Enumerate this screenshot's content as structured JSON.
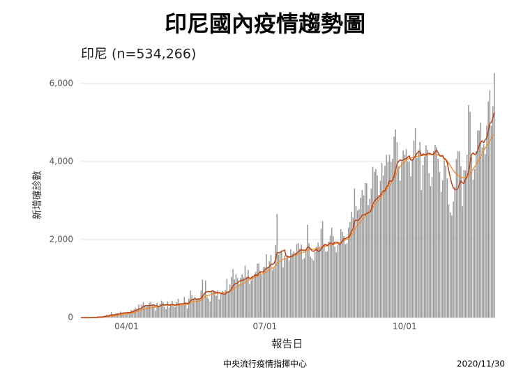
{
  "chart_data": {
    "type": "bar",
    "title": "印尼國內疫情趨勢圖",
    "subtitle": "印尼 (n=534,266)",
    "y_label": "新增確診數",
    "x_label": "報告日",
    "source": "中央流行疫情指揮中心",
    "date": "2020/11/30",
    "ylim": [
      0,
      6300
    ],
    "yticks": [
      0,
      {
        "value": 2000,
        "label": "2,000"
      },
      {
        "value": 4000,
        "label": "4,000"
      },
      {
        "value": 6000,
        "label": "6,000"
      }
    ],
    "grid": true,
    "categories": [
      null,
      null,
      null,
      null,
      null,
      null,
      null,
      null,
      null,
      null,
      null,
      null,
      null,
      null,
      null,
      null,
      null,
      null,
      null,
      null,
      null,
      null,
      null,
      null,
      null,
      null,
      null,
      null,
      null,
      null,
      "04/01",
      null,
      null,
      null,
      null,
      null,
      null,
      null,
      null,
      null,
      null,
      null,
      null,
      null,
      null,
      null,
      null,
      null,
      null,
      null,
      null,
      null,
      null,
      null,
      null,
      null,
      null,
      null,
      null,
      null,
      null,
      null,
      null,
      null,
      null,
      null,
      null,
      null,
      null,
      null,
      null,
      null,
      null,
      null,
      null,
      null,
      null,
      null,
      null,
      null,
      null,
      null,
      null,
      null,
      null,
      null,
      null,
      null,
      null,
      null,
      null,
      null,
      null,
      null,
      null,
      null,
      null,
      null,
      null,
      null,
      null,
      null,
      null,
      null,
      null,
      null,
      null,
      null,
      null,
      null,
      null,
      null,
      null,
      null,
      null,
      null,
      null,
      null,
      null,
      null,
      null,
      "07/01",
      null,
      null,
      null,
      null,
      null,
      null,
      null,
      null,
      null,
      null,
      null,
      null,
      null,
      null,
      null,
      null,
      null,
      null,
      null,
      null,
      null,
      null,
      null,
      null,
      null,
      null,
      null,
      null,
      null,
      null,
      null,
      null,
      null,
      null,
      null,
      null,
      null,
      null,
      null,
      null,
      null,
      null,
      null,
      null,
      null,
      null,
      null,
      null,
      null,
      null,
      null,
      null,
      null,
      null,
      null,
      null,
      null,
      null,
      null,
      null,
      null,
      null,
      null,
      null,
      null,
      null,
      null,
      null,
      null,
      null,
      null,
      null,
      null,
      null,
      null,
      null,
      null,
      null,
      null,
      null,
      null,
      null,
      null,
      null,
      null,
      null,
      null,
      null,
      null,
      null,
      null,
      "10/01",
      null,
      null,
      null,
      null,
      null,
      null,
      null,
      null,
      null,
      null,
      null,
      null,
      null,
      null,
      null,
      null,
      null,
      null,
      null,
      null,
      null,
      null,
      null,
      null,
      null,
      null,
      null,
      null,
      null,
      null,
      null,
      null,
      null,
      null,
      null,
      null,
      null,
      null,
      null,
      null,
      null,
      null,
      null,
      null,
      null,
      null,
      null,
      null,
      null,
      null,
      null,
      null,
      null,
      null,
      null,
      null,
      null,
      null,
      null
    ],
    "series": [
      {
        "type": "bar",
        "color": "#9a9a9a",
        "values": [
          2,
          0,
          0,
          0,
          2,
          0,
          2,
          13,
          8,
          7,
          0,
          35,
          27,
          21,
          17,
          38,
          55,
          82,
          60,
          81,
          141,
          64,
          65,
          106,
          105,
          103,
          153,
          109,
          130,
          129,
          114,
          149,
          113,
          196,
          181,
          218,
          247,
          218,
          337,
          219,
          330,
          399,
          316,
          282,
          297,
          380,
          407,
          325,
          327,
          185,
          375,
          283,
          357,
          436,
          396,
          275,
          214,
          415,
          260,
          347,
          433,
          292,
          271,
          395,
          484,
          367,
          338,
          336,
          533,
          387,
          233,
          484,
          689,
          568,
          490,
          529,
          489,
          496,
          486,
          693,
          973,
          634,
          949,
          526,
          479,
          415,
          686,
          687,
          678,
          557,
          700,
          467,
          609,
          684,
          585,
          703,
          993,
          672,
          847,
          1043,
          1241,
          979,
          1111,
          1014,
          857,
          1017,
          1106,
          1031,
          1331,
          1041,
          1226,
          862,
          954,
          1051,
          1113,
          1178,
          1385,
          1385,
          1198,
          1082,
          1293,
          1293,
          1624,
          1301,
          1447,
          1607,
          1209,
          1268,
          1853,
          2657,
          1611,
          1671,
          1681,
          1282,
          1591,
          1522,
          1574,
          1462,
          1752,
          1639,
          1693,
          1655,
          1882,
          1906,
          1761,
          1868,
          1492,
          1525,
          1748,
          2381,
          1904,
          1560,
          1519,
          1462,
          1679,
          1815,
          1922,
          1815,
          2277,
          2473,
          1893,
          1687,
          1693,
          1942,
          2098,
          2307,
          2081,
          1821,
          1673,
          1866,
          1902,
          2266,
          2197,
          2090,
          1877,
          1903,
          2306,
          2447,
          2719,
          2564,
          3308,
          2858,
          2743,
          2775,
          3075,
          3269,
          3128,
          3444,
          3444,
          2880,
          3046,
          3307,
          3861,
          3737,
          3806,
          3636,
          3141,
          3507,
          3963,
          3635,
          3891,
          4168,
          3989,
          4176,
          3989,
          4071,
          4634,
          4823,
          4494,
          3874,
          3509,
          4002,
          4284,
          4174,
          4317,
          4007,
          3992,
          3622,
          4056,
          4538,
          4850,
          4094,
          4294,
          4497,
          3267,
          3906,
          4127,
          4411,
          4301,
          3703,
          3373,
          3602,
          4267,
          4432,
          4369,
          4070,
          3732,
          3222,
          3520,
          4029,
          3893,
          3565,
          2897,
          2696,
          2618,
          2973,
          3356,
          4065,
          4262,
          4262,
          3880,
          2853,
          3779,
          3770,
          4173,
          5444,
          5272,
          4106,
          3535,
          3807,
          4265,
          4798,
          4792,
          4998,
          4360,
          4442,
          4192,
          4917,
          5534,
          5828,
          4918,
          5418,
          6267
        ]
      },
      {
        "type": "line",
        "color": "#f0913a",
        "values": [
          1,
          1,
          1,
          1,
          1,
          1,
          1,
          2,
          2,
          3,
          3,
          5,
          7,
          8,
          10,
          12,
          16,
          21,
          24,
          28,
          37,
          41,
          44,
          49,
          55,
          60,
          70,
          77,
          85,
          90,
          98,
          104,
          109,
          116,
          122,
          130,
          140,
          150,
          166,
          175,
          188,
          210,
          218,
          232,
          236,
          242,
          249,
          258,
          266,
          264,
          277,
          280,
          290,
          308,
          314,
          317,
          318,
          320,
          318,
          315,
          322,
          318,
          312,
          320,
          318,
          320,
          322,
          325,
          330,
          335,
          340,
          348,
          380,
          400,
          410,
          420,
          415,
          420,
          425,
          440,
          480,
          510,
          550,
          560,
          575,
          580,
          590,
          600,
          610,
          620,
          630,
          630,
          630,
          635,
          640,
          640,
          650,
          660,
          670,
          690,
          720,
          750,
          770,
          790,
          820,
          840,
          860,
          880,
          900,
          920,
          950,
          970,
          990,
          1010,
          1030,
          1050,
          1060,
          1080,
          1100,
          1110,
          1130,
          1150,
          1170,
          1190,
          1220,
          1250,
          1270,
          1290,
          1320,
          1380,
          1420,
          1440,
          1470,
          1490,
          1510,
          1520,
          1540,
          1550,
          1560,
          1570,
          1590,
          1600,
          1610,
          1620,
          1640,
          1660,
          1670,
          1680,
          1690,
          1720,
          1740,
          1750,
          1750,
          1750,
          1760,
          1770,
          1770,
          1780,
          1790,
          1810,
          1820,
          1830,
          1840,
          1850,
          1860,
          1870,
          1880,
          1890,
          1900,
          1910,
          1920,
          1930,
          1950,
          1970,
          1990,
          2010,
          2030,
          2060,
          2110,
          2160,
          2240,
          2300,
          2350,
          2400,
          2450,
          2500,
          2550,
          2590,
          2640,
          2680,
          2720,
          2770,
          2820,
          2870,
          2920,
          2970,
          3020,
          3070,
          3120,
          3170,
          3220,
          3280,
          3340,
          3400,
          3450,
          3500,
          3570,
          3640,
          3720,
          3800,
          3870,
          3920,
          3960,
          4000,
          4030,
          4060,
          4080,
          4090,
          4100,
          4110,
          4120,
          4130,
          4140,
          4150,
          4150,
          4160,
          4160,
          4170,
          4170,
          4180,
          4180,
          4180,
          4180,
          4180,
          4180,
          4170,
          4160,
          4150,
          4120,
          4090,
          4060,
          4010,
          3950,
          3890,
          3830,
          3770,
          3720,
          3680,
          3650,
          3620,
          3600,
          3590,
          3580,
          3580,
          3580,
          3620,
          3680,
          3740,
          3800,
          3860,
          3920,
          3990,
          4060,
          4130,
          4200,
          4270,
          4340,
          4400,
          4460,
          4520,
          4580,
          4640,
          4700
        ]
      },
      {
        "type": "line",
        "color": "#b5421a",
        "values": [
          1,
          1,
          1,
          1,
          1,
          1,
          1,
          3,
          4,
          5,
          5,
          10,
          13,
          16,
          18,
          22,
          28,
          40,
          45,
          50,
          67,
          69,
          70,
          78,
          89,
          93,
          105,
          112,
          121,
          120,
          126,
          131,
          124,
          137,
          148,
          164,
          181,
          194,
          221,
          225,
          247,
          283,
          294,
          311,
          305,
          308,
          312,
          321,
          326,
          298,
          309,
          283,
          294,
          319,
          331,
          322,
          327,
          339,
          322,
          327,
          339,
          330,
          315,
          337,
          331,
          349,
          355,
          355,
          363,
          372,
          363,
          373,
          425,
          461,
          462,
          488,
          463,
          478,
          478,
          493,
          559,
          589,
          654,
          662,
          668,
          661,
          678,
          686,
          646,
          653,
          641,
          639,
          618,
          617,
          601,
          604,
          652,
          648,
          677,
          730,
          807,
          853,
          871,
          878,
          929,
          939,
          957,
          960,
          991,
          997,
          1039,
          1009,
          1015,
          1052,
          1065,
          1101,
          1070,
          1138,
          1166,
          1171,
          1164,
          1216,
          1263,
          1278,
          1300,
          1372,
          1359,
          1393,
          1473,
          1663,
          1663,
          1668,
          1706,
          1707,
          1734,
          1572,
          1569,
          1547,
          1562,
          1568,
          1603,
          1626,
          1647,
          1682,
          1717,
          1743,
          1723,
          1730,
          1726,
          1803,
          1803,
          1769,
          1713,
          1698,
          1719,
          1760,
          1696,
          1706,
          1753,
          1822,
          1853,
          1875,
          1845,
          1876,
          1915,
          1895,
          1875,
          1936,
          1932,
          1925,
          1871,
          1905,
          1960,
          2021,
          2026,
          2050,
          2059,
          2107,
          2215,
          2274,
          2478,
          2497,
          2482,
          2517,
          2557,
          2625,
          2638,
          2631,
          2669,
          2689,
          2701,
          2750,
          2904,
          2973,
          3025,
          3057,
          3098,
          3122,
          3198,
          3248,
          3243,
          3348,
          3393,
          3506,
          3493,
          3517,
          3629,
          3790,
          3946,
          4000,
          4044,
          4025,
          4037,
          4066,
          4073,
          4110,
          4145,
          4041,
          4030,
          4087,
          4135,
          4211,
          4240,
          4268,
          4150,
          4191,
          4184,
          4163,
          4207,
          4209,
          4203,
          4169,
          4193,
          4238,
          4293,
          4230,
          4143,
          4139,
          4152,
          4060,
          4049,
          3968,
          3770,
          3585,
          3434,
          3320,
          3282,
          3287,
          3300,
          3403,
          3509,
          3450,
          3437,
          3547,
          3620,
          3720,
          3960,
          4180,
          4220,
          4180,
          4190,
          4280,
          4410,
          4500,
          4530,
          4480,
          4560,
          4600,
          4790,
          4980,
          5000,
          5110,
          5260
        ]
      }
    ]
  }
}
